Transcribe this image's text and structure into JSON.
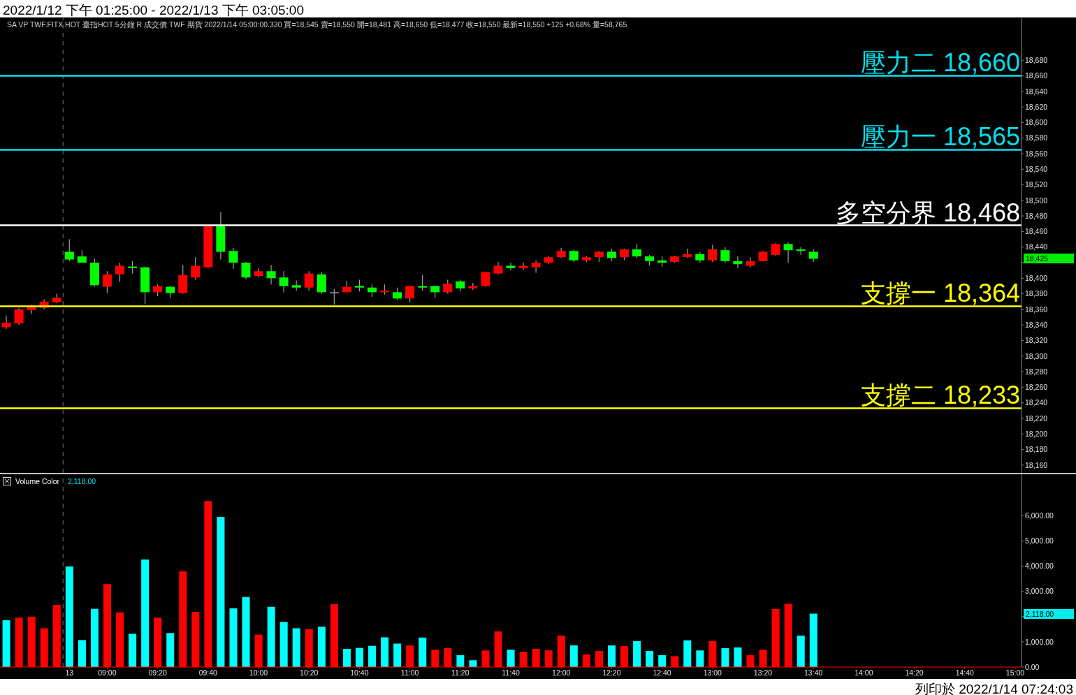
{
  "chart_data": [
    {
      "type": "candlestick",
      "title": "2022/1/12 下午 01:25:00 - 2022/1/13 下午 03:05:00",
      "subtitle": "SA VP TWF.FITX HOT 臺指HOT 5分鐘 R 成交價 TWF 期貨 2022/1/14 05:00:00.330 買=18,545 賣=18,550 開=18,481 高=18,650 低=18,477 收=18,550 最新=18,550 +125 +0.68% 量=58,765",
      "categories": [
        null,
        null,
        null,
        null,
        null,
        null,
        null,
        null,
        null,
        null,
        null,
        null,
        null,
        null,
        null,
        null,
        null,
        null,
        null,
        null,
        null,
        null,
        null,
        null,
        null,
        null,
        null,
        null,
        null,
        null,
        null,
        null,
        null,
        null,
        null,
        null,
        null,
        null,
        null,
        null,
        null,
        null,
        null,
        null,
        null,
        null,
        null,
        null,
        null,
        null,
        null,
        null,
        null,
        null,
        null,
        null,
        null,
        null,
        null,
        null,
        null,
        null,
        null,
        null,
        null,
        null,
        null,
        null,
        null,
        null,
        null,
        null,
        null,
        null,
        null,
        null,
        null,
        null,
        null,
        null,
        null
      ],
      "ohlc": [
        [
          18337,
          18352,
          18335,
          18343
        ],
        [
          18342,
          18362,
          18340,
          18360
        ],
        [
          18359,
          18366,
          18354,
          18363
        ],
        [
          18362,
          18373,
          18360,
          18370
        ],
        [
          18369,
          18380,
          18368,
          18375
        ],
        [
          18434,
          18450,
          18422,
          18424
        ],
        [
          18428,
          18436,
          18420,
          18420
        ],
        [
          18420,
          18425,
          18389,
          18391
        ],
        [
          18389,
          18409,
          18381,
          18405
        ],
        [
          18405,
          18420,
          18395,
          18416
        ],
        [
          18415,
          18422,
          18406,
          18413
        ],
        [
          18414,
          18415,
          18367,
          18382
        ],
        [
          18382,
          18392,
          18377,
          18390
        ],
        [
          18389,
          18390,
          18375,
          18381
        ],
        [
          18381,
          18417,
          18380,
          18404
        ],
        [
          18401,
          18427,
          18398,
          18416
        ],
        [
          18414,
          18467,
          18413,
          18467
        ],
        [
          18467,
          18485,
          18424,
          18434
        ],
        [
          18435,
          18439,
          18412,
          18420
        ],
        [
          18420,
          18421,
          18399,
          18401
        ],
        [
          18403,
          18413,
          18401,
          18409
        ],
        [
          18409,
          18417,
          18392,
          18400
        ],
        [
          18401,
          18409,
          18382,
          18390
        ],
        [
          18391,
          18397,
          18384,
          18388
        ],
        [
          18388,
          18409,
          18384,
          18406
        ],
        [
          18405,
          18408,
          18380,
          18382
        ],
        [
          18382,
          18386,
          18366,
          18382
        ],
        [
          18382,
          18397,
          18382,
          18389
        ],
        [
          18390,
          18398,
          18383,
          18388
        ],
        [
          18388,
          18392,
          18376,
          18382
        ],
        [
          18382,
          18392,
          18379,
          18384
        ],
        [
          18382,
          18388,
          18372,
          18374
        ],
        [
          18374,
          18390,
          18369,
          18390
        ],
        [
          18390,
          18404,
          18384,
          18388
        ],
        [
          18390,
          18390,
          18375,
          18382
        ],
        [
          18382,
          18398,
          18380,
          18393
        ],
        [
          18396,
          18398,
          18383,
          18387
        ],
        [
          18387,
          18394,
          18385,
          18390
        ],
        [
          18390,
          18408,
          18389,
          18408
        ],
        [
          18406,
          18421,
          18405,
          18416
        ],
        [
          18416,
          18420,
          18410,
          18413
        ],
        [
          18413,
          18420,
          18411,
          18416
        ],
        [
          18414,
          18423,
          18407,
          18420
        ],
        [
          18420,
          18428,
          18418,
          18427
        ],
        [
          18427,
          18439,
          18426,
          18435
        ],
        [
          18435,
          18437,
          18421,
          18423
        ],
        [
          18423,
          18428,
          18421,
          18427
        ],
        [
          18427,
          18435,
          18421,
          18434
        ],
        [
          18434,
          18438,
          18422,
          18426
        ],
        [
          18427,
          18438,
          18423,
          18437
        ],
        [
          18437,
          18444,
          18426,
          18428
        ],
        [
          18428,
          18430,
          18416,
          18422
        ],
        [
          18423,
          18428,
          18415,
          18420
        ],
        [
          18421,
          18429,
          18420,
          18428
        ],
        [
          18427,
          18438,
          18426,
          18431
        ],
        [
          18431,
          18434,
          18420,
          18423
        ],
        [
          18423,
          18443,
          18421,
          18437
        ],
        [
          18436,
          18440,
          18420,
          18422
        ],
        [
          18422,
          18428,
          18413,
          18418
        ],
        [
          18416,
          18427,
          18414,
          18422
        ],
        [
          18422,
          18435,
          18422,
          18434
        ],
        [
          18430,
          18445,
          18429,
          18444
        ],
        [
          18444,
          18446,
          18420,
          18436
        ],
        [
          18437,
          18440,
          18430,
          18435
        ],
        [
          18434,
          18437,
          18421,
          18425
        ],
        null,
        null,
        null,
        null,
        null,
        null,
        null,
        null,
        null,
        null,
        null,
        null,
        null,
        null,
        null,
        null
      ],
      "colors": [
        "#ff0000",
        "#ff0000",
        "#ff0000",
        "#ff0000",
        "#ff0000",
        "#00ff00",
        "#00ff00",
        "#00ff00",
        "#ff0000",
        "#ff0000",
        "#00ff00",
        "#00ff00",
        "#ff0000",
        "#00ff00",
        "#ff0000",
        "#ff0000",
        "#ff0000",
        "#00ff00",
        "#00ff00",
        "#00ff00",
        "#ff0000",
        "#00ff00",
        "#00ff00",
        "#00ff00",
        "#ff0000",
        "#00ff00",
        "#a0a0a0",
        "#ff0000",
        "#00ff00",
        "#00ff00",
        "#ff0000",
        "#00ff00",
        "#ff0000",
        "#00ff00",
        "#00ff00",
        "#ff0000",
        "#00ff00",
        "#ff0000",
        "#ff0000",
        "#ff0000",
        "#00ff00",
        "#ff0000",
        "#ff0000",
        "#ff0000",
        "#ff0000",
        "#00ff00",
        "#ff0000",
        "#ff0000",
        "#00ff00",
        "#ff0000",
        "#00ff00",
        "#00ff00",
        "#00ff00",
        "#ff0000",
        "#ff0000",
        "#00ff00",
        "#ff0000",
        "#00ff00",
        "#00ff00",
        "#ff0000",
        "#ff0000",
        "#ff0000",
        "#00ff00",
        "#00ff00",
        "#00ff00",
        null,
        null,
        null,
        null,
        null,
        null,
        null,
        null,
        null,
        null,
        null,
        null,
        null,
        null,
        null,
        null
      ],
      "ylim": [
        18150,
        18734
      ],
      "yticks": [
        {
          "value": 18160,
          "label": "18,160"
        },
        {
          "value": 18180,
          "label": "18,180"
        },
        {
          "value": 18200,
          "label": "18,200"
        },
        {
          "value": 18220,
          "label": "18,220"
        },
        {
          "value": 18240,
          "label": "18,240"
        },
        {
          "value": 18260,
          "label": "18,260"
        },
        {
          "value": 18280,
          "label": "18,280"
        },
        {
          "value": 18300,
          "label": "18,300"
        },
        {
          "value": 18320,
          "label": "18,320"
        },
        {
          "value": 18340,
          "label": "18,340"
        },
        {
          "value": 18360,
          "label": "18,360"
        },
        {
          "value": 18380,
          "label": "18,380"
        },
        {
          "value": 18400,
          "label": "18,400"
        },
        {
          "value": 18420,
          "label": null
        },
        {
          "value": 18440,
          "label": "18,440"
        },
        {
          "value": 18460,
          "label": "18,460"
        },
        {
          "value": 18480,
          "label": "18,480"
        },
        {
          "value": 18500,
          "label": "18,500"
        },
        {
          "value": 18520,
          "label": "18,520"
        },
        {
          "value": 18540,
          "label": "18,540"
        },
        {
          "value": 18560,
          "label": "18,560"
        },
        {
          "value": 18580,
          "label": "18,580"
        },
        {
          "value": 18600,
          "label": "18,600"
        },
        {
          "value": 18620,
          "label": "18,620"
        },
        {
          "value": 18640,
          "label": "18,640"
        },
        {
          "value": 18660,
          "label": "18,660"
        },
        {
          "value": 18680,
          "label": "18,680"
        }
      ],
      "ref_lines": [
        {
          "axis": "y",
          "value": 18660,
          "label": "壓力二 18,660",
          "color": "#00e0ee"
        },
        {
          "axis": "y",
          "value": 18565,
          "label": "壓力一 18,565",
          "color": "#00e0ee"
        },
        {
          "axis": "y",
          "value": 18468,
          "label": "多空分界 18,468",
          "color": "#ffffff"
        },
        {
          "axis": "y",
          "value": 18364,
          "label": "支撐一 18,364",
          "color": "#ffff00"
        },
        {
          "axis": "y",
          "value": 18233,
          "label": "支撐二 18,233",
          "color": "#ffff00"
        }
      ],
      "annotations": [
        "18,425"
      ],
      "tick_labels": "y"
    },
    {
      "type": "bar",
      "title": "Volume Color",
      "subtitle": "2,118.00",
      "categories": [
        null,
        null,
        null,
        null,
        null,
        "13",
        null,
        null,
        "09:00",
        null,
        null,
        null,
        "09:20",
        null,
        null,
        null,
        "09:40",
        null,
        null,
        null,
        "10:00",
        null,
        null,
        null,
        "10:20",
        null,
        null,
        null,
        "10:40",
        null,
        null,
        null,
        "11:00",
        null,
        null,
        null,
        "11:20",
        null,
        null,
        null,
        "11:40",
        null,
        null,
        null,
        "12:00",
        null,
        null,
        null,
        "12:20",
        null,
        null,
        null,
        "12:40",
        null,
        null,
        null,
        "13:00",
        null,
        null,
        null,
        "13:20",
        null,
        null,
        null,
        "13:40",
        null,
        null,
        null,
        "14:00",
        null,
        null,
        null,
        "14:20",
        null,
        null,
        null,
        "14:40",
        null,
        null,
        null,
        "15:00"
      ],
      "values": [
        1860,
        1960,
        2000,
        1540,
        2470,
        3990,
        1070,
        2310,
        3290,
        2170,
        1320,
        4270,
        1960,
        1350,
        3800,
        2190,
        6590,
        5960,
        2330,
        2780,
        1290,
        2390,
        1790,
        1540,
        1510,
        1600,
        2500,
        720,
        760,
        840,
        1180,
        930,
        860,
        1170,
        690,
        750,
        470,
        270,
        660,
        1420,
        690,
        610,
        720,
        660,
        1250,
        860,
        500,
        640,
        860,
        830,
        1030,
        640,
        470,
        430,
        1060,
        660,
        1030,
        750,
        780,
        470,
        690,
        2300,
        2510,
        1250,
        2120,
        null,
        null,
        null,
        null,
        null,
        null,
        null,
        null,
        null,
        null,
        null,
        null,
        null,
        null,
        null,
        null
      ],
      "colors": [
        "#00ffff",
        "#ff0000",
        "#ff0000",
        "#ff0000",
        "#ff0000",
        "#00ffff",
        "#00ffff",
        "#00ffff",
        "#ff0000",
        "#ff0000",
        "#00ffff",
        "#00ffff",
        "#ff0000",
        "#00ffff",
        "#ff0000",
        "#ff0000",
        "#ff0000",
        "#00ffff",
        "#00ffff",
        "#00ffff",
        "#ff0000",
        "#00ffff",
        "#00ffff",
        "#00ffff",
        "#ff0000",
        "#00ffff",
        "#ff0000",
        "#00ffff",
        "#00ffff",
        "#00ffff",
        "#00ffff",
        "#00ffff",
        "#ff0000",
        "#00ffff",
        "#ff0000",
        "#ff0000",
        "#00ffff",
        "#00ffff",
        "#ff0000",
        "#ff0000",
        "#00ffff",
        "#ff0000",
        "#ff0000",
        "#ff0000",
        "#ff0000",
        "#00ffff",
        "#ff0000",
        "#ff0000",
        "#00ffff",
        "#ff0000",
        "#00ffff",
        "#00ffff",
        "#00ffff",
        "#ff0000",
        "#00ffff",
        "#00ffff",
        "#ff0000",
        "#00ffff",
        "#00ffff",
        "#ff0000",
        "#ff0000",
        "#ff0000",
        "#ff0000",
        "#00ffff",
        "#00ffff",
        null,
        null,
        null,
        null,
        null,
        null,
        null,
        null,
        null,
        null,
        null,
        null,
        null,
        null,
        null,
        null
      ],
      "ylim": [
        0,
        7650
      ],
      "yticks": [
        {
          "value": 0,
          "label": "0.00"
        },
        {
          "value": 1000,
          "label": "1,000.00"
        },
        {
          "value": 2000,
          "label": null
        },
        {
          "value": 3000,
          "label": "3,000.00"
        },
        {
          "value": 4000,
          "label": "4,000.00"
        },
        {
          "value": 5000,
          "label": "5,000.00"
        },
        {
          "value": 6000,
          "label": "6,000.00"
        }
      ],
      "annotations": [
        "2,118.00",
        "列印於 2022/1/14 07:24:03"
      ]
    }
  ]
}
